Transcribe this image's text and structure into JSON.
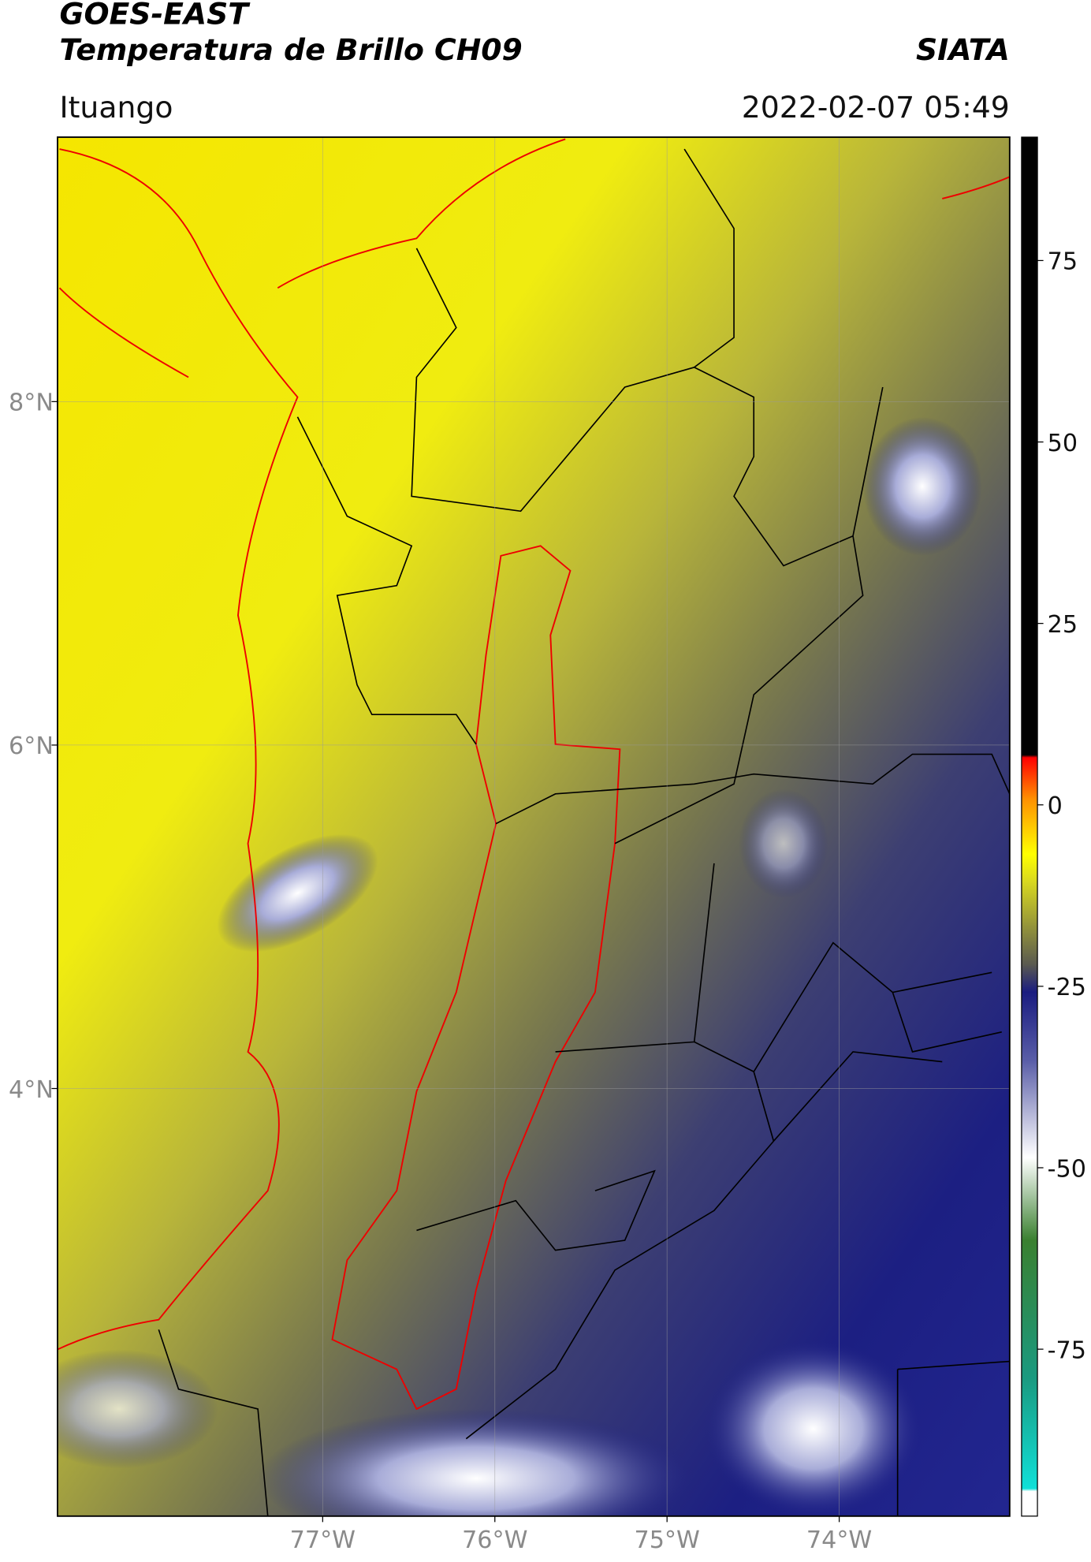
{
  "header": {
    "title": "GOES-EAST",
    "subtitle": "Temperatura de Brillo CH09",
    "source": "SIATA",
    "location": "Ituango",
    "datetime": "2022-02-07 05:49"
  },
  "map": {
    "xlim": [
      -78.54,
      -73.01
    ],
    "ylim": [
      1.51,
      9.54
    ],
    "xticks": [
      {
        "value": -77,
        "label": "77°W"
      },
      {
        "value": -76,
        "label": "76°W"
      },
      {
        "value": -75,
        "label": "75°W"
      },
      {
        "value": -74,
        "label": "74°W"
      }
    ],
    "yticks": [
      {
        "value": 8,
        "label": "8°N"
      },
      {
        "value": 6,
        "label": "6°N"
      },
      {
        "value": 4,
        "label": "4°N"
      }
    ],
    "grid": true
  },
  "colorbar": {
    "lim": [
      -98,
      92
    ],
    "ticks": [
      75,
      50,
      25,
      0,
      -25,
      -50,
      -75
    ]
  }
}
